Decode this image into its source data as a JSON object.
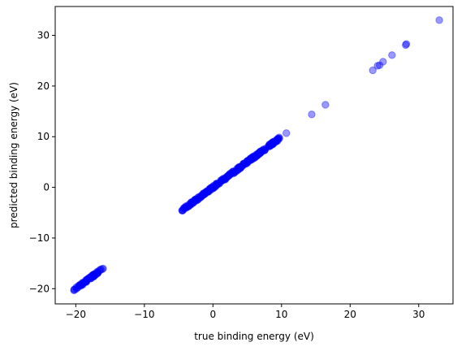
{
  "chart_data": {
    "type": "scatter",
    "title": "",
    "xlabel": "true binding energy (eV)",
    "ylabel": "predicted binding energy (eV)",
    "xlim": [
      -23.0,
      35.0
    ],
    "ylim": [
      -23.0,
      35.7
    ],
    "x_ticks": [
      -20,
      -10,
      0,
      10,
      20,
      30
    ],
    "y_ticks": [
      -20,
      -10,
      0,
      10,
      20,
      30
    ],
    "x_tick_labels": [
      "−20",
      "−10",
      "0",
      "10",
      "20",
      "30"
    ],
    "y_tick_labels": [
      "−20",
      "−10",
      "0",
      "10",
      "20",
      "30"
    ],
    "grid": false,
    "legend": "none",
    "marker_color": "#0000ff",
    "marker_alpha": 0.4,
    "clusters": [
      {
        "x_range": [
          -20.3,
          -16.0
        ],
        "count": 70
      },
      {
        "x_range": [
          -4.6,
          9.8
        ],
        "count": 260
      }
    ],
    "points": [
      [
        10.7,
        10.7
      ],
      [
        14.4,
        14.4
      ],
      [
        16.4,
        16.3
      ],
      [
        23.3,
        23.1
      ],
      [
        24.0,
        24.0
      ],
      [
        24.3,
        24.1
      ],
      [
        24.8,
        24.8
      ],
      [
        26.1,
        26.1
      ],
      [
        28.1,
        28.1
      ],
      [
        28.2,
        28.3
      ],
      [
        33.0,
        33.0
      ]
    ]
  }
}
